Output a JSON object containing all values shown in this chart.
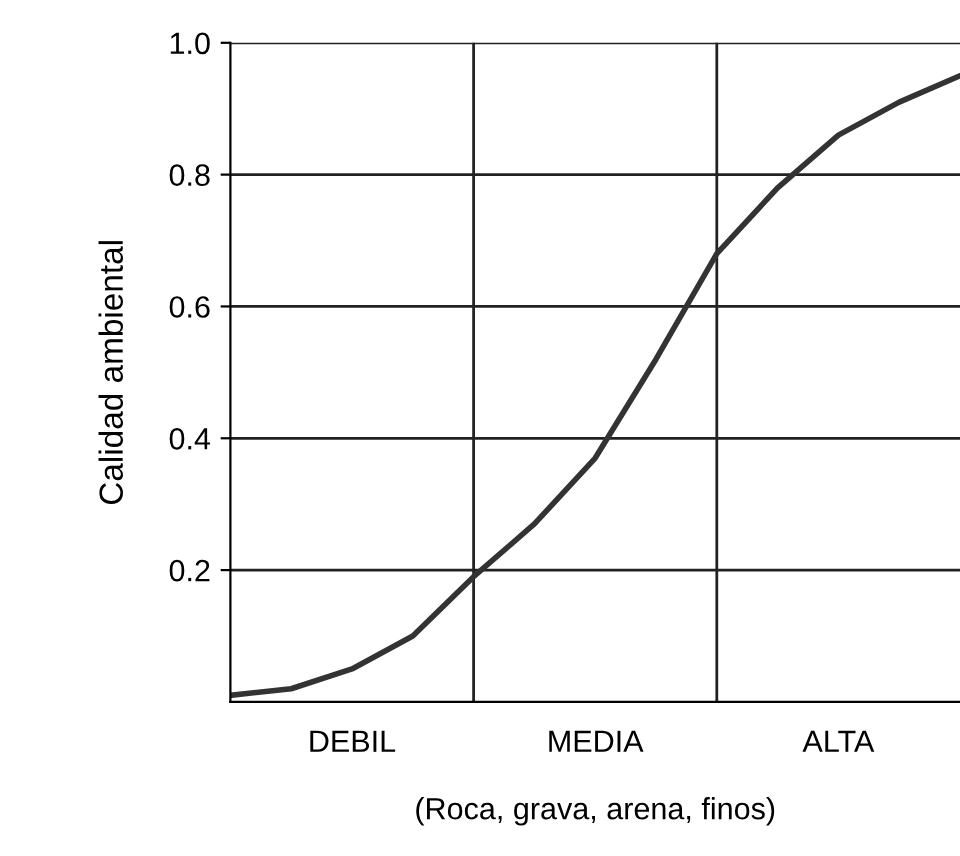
{
  "chart_data": {
    "type": "line",
    "ylabel": "Calidad ambiental",
    "xlabel": "(Roca, grava, arena, finos)",
    "categories": [
      null,
      null,
      "DEBIL",
      null,
      null,
      null,
      "MEDIA",
      null,
      null,
      null,
      "ALTA",
      null,
      null
    ],
    "values": [
      0.01,
      0.02,
      0.05,
      0.1,
      0.19,
      0.27,
      0.37,
      0.52,
      0.68,
      0.78,
      0.86,
      0.91,
      0.95
    ],
    "color": "#333333",
    "ylim": [
      0,
      1
    ],
    "yticks": [
      0.2,
      0.4,
      0.6,
      0.8,
      {
        "value": 1,
        "label": "1.0"
      }
    ],
    "grid": true,
    "marker": "none",
    "line_style": "solid"
  }
}
